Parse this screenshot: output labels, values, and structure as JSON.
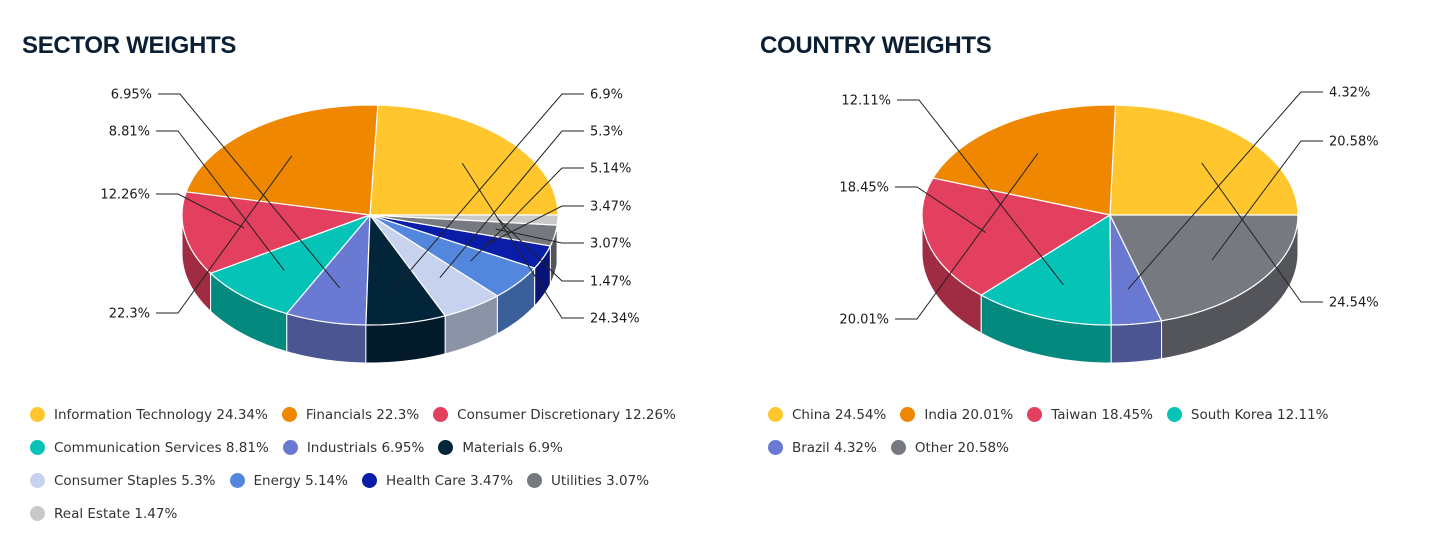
{
  "chart_data": [
    {
      "type": "pie",
      "title": "SECTOR WEIGHTS",
      "slices": [
        {
          "name": "Information Technology",
          "value": 24.34,
          "label": "24.34%",
          "legend": "Information Technology 24.34%",
          "color": "#FFC62E"
        },
        {
          "name": "Financials",
          "value": 22.3,
          "label": "22.3%",
          "legend": "Financials 22.3%",
          "color": "#EF8700"
        },
        {
          "name": "Consumer Discretionary",
          "value": 12.26,
          "label": "12.26%",
          "legend": "Consumer Discretionary 12.26%",
          "color": "#E33F5F"
        },
        {
          "name": "Communication Services",
          "value": 8.81,
          "label": "8.81%",
          "legend": "Communication Services 8.81%",
          "color": "#05C3B6"
        },
        {
          "name": "Industrials",
          "value": 6.95,
          "label": "6.95%",
          "legend": "Industrials 6.95%",
          "color": "#6A79D1"
        },
        {
          "name": "Materials",
          "value": 6.9,
          "label": "6.9%",
          "legend": "Materials 6.9%",
          "color": "#03253A"
        },
        {
          "name": "Consumer Staples",
          "value": 5.3,
          "label": "5.3%",
          "legend": "Consumer Staples 5.3%",
          "color": "#C6D2EE"
        },
        {
          "name": "Energy",
          "value": 5.14,
          "label": "5.14%",
          "legend": "Energy 5.14%",
          "color": "#5387DD"
        },
        {
          "name": "Health Care",
          "value": 3.47,
          "label": "3.47%",
          "legend": "Health Care 3.47%",
          "color": "#0A1DA8"
        },
        {
          "name": "Utilities",
          "value": 3.07,
          "label": "3.07%",
          "legend": "Utilities 3.07%",
          "color": "#767A80"
        },
        {
          "name": "Real Estate",
          "value": 1.47,
          "label": "1.47%",
          "legend": "Real Estate 1.47%",
          "color": "#C9C9C9"
        }
      ],
      "legend_rows": [
        [
          0,
          1,
          2
        ],
        [
          3,
          4,
          5
        ],
        [
          6,
          7,
          8,
          9
        ],
        [
          10
        ]
      ]
    },
    {
      "type": "pie",
      "title": "COUNTRY WEIGHTS",
      "slices": [
        {
          "name": "China",
          "value": 24.54,
          "label": "24.54%",
          "legend": "China 24.54%",
          "color": "#FFC62E"
        },
        {
          "name": "India",
          "value": 20.01,
          "label": "20.01%",
          "legend": "India 20.01%",
          "color": "#EF8700"
        },
        {
          "name": "Taiwan",
          "value": 18.45,
          "label": "18.45%",
          "legend": "Taiwan 18.45%",
          "color": "#E33F5F"
        },
        {
          "name": "South Korea",
          "value": 12.11,
          "label": "12.11%",
          "legend": "South Korea 12.11%",
          "color": "#05C3B6"
        },
        {
          "name": "Brazil",
          "value": 4.32,
          "label": "4.32%",
          "legend": "Brazil 4.32%",
          "color": "#6A79D1"
        },
        {
          "name": "Other",
          "value": 20.58,
          "label": "20.58%",
          "legend": "Other 20.58%",
          "color": "#767A80"
        }
      ],
      "legend_rows": [
        [
          0,
          1,
          2,
          3
        ],
        [
          4,
          5
        ]
      ]
    }
  ]
}
